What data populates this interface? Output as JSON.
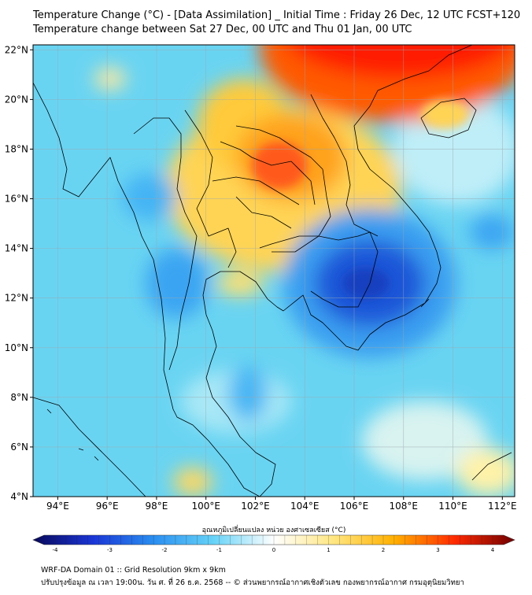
{
  "header": {
    "title_line1": "Temperature Change (°C) - [Data Assimilation] _ Initial Time : Friday 26 Dec, 12 UTC FCST+120",
    "title_line2": "Temperature change between Sat 27 Dec, 00 UTC and Thu 01 Jan, 00 UTC"
  },
  "map": {
    "lat_labels": [
      "22°N",
      "20°N",
      "18°N",
      "16°N",
      "14°N",
      "12°N",
      "10°N",
      "8°N",
      "6°N",
      "4°N"
    ],
    "lon_labels": [
      "94°E",
      "96°E",
      "98°E",
      "100°E",
      "102°E",
      "104°E",
      "106°E",
      "108°E",
      "110°E",
      "112°E"
    ],
    "lat_values": [
      22,
      20,
      18,
      16,
      14,
      12,
      10,
      8,
      6,
      4
    ],
    "lon_values": [
      94,
      96,
      98,
      100,
      102,
      104,
      106,
      108,
      110,
      112
    ],
    "lon_range": [
      93.0,
      112.5
    ],
    "lat_range": [
      4.0,
      22.2
    ],
    "background_color": "#69d4f2",
    "hot_region": "north of 19°N in China / northern Vietnam and Laos: red",
    "warm_region": "northeast Thailand / Laos: orange-yellow",
    "cold_region": "Cambodia / southern Vietnam: blue"
  },
  "colorbar": {
    "label": "อุณหภูมิเปลี่ยนแปลง หน่วย องศาเซลเซียส (°C)",
    "min": -4,
    "max": 4,
    "ticks": [
      "-4",
      "-3",
      "-2",
      "-1",
      "0",
      "1",
      "2",
      "3",
      "4"
    ],
    "tick_values": [
      -4,
      -3,
      -2,
      -1,
      0,
      1,
      2,
      3,
      4
    ],
    "colors": [
      "#08085a",
      "#1a36d6",
      "#2a8ef0",
      "#66d3f7",
      "#ffffff",
      "#ffe680",
      "#ffb000",
      "#ff2a00",
      "#700000"
    ]
  },
  "footer": {
    "line1": "WRF-DA Domain 01 :: Grid Resolution 9km x 9km",
    "line2": "ปรับปรุงข้อมูล ณ เวลา 19:00น. วัน ศ. ที่ 26 ธ.ค. 2568 -- © ส่วนพยากรณ์อากาศเชิงตัวเลข กองพยากรณ์อากาศ กรมอุตุนิยมวิทยา"
  }
}
